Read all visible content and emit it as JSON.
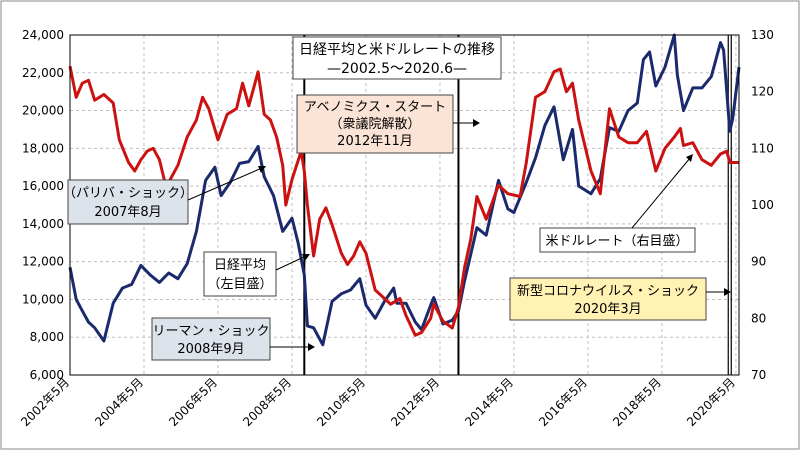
{
  "chart_data": {
    "type": "line",
    "title": "日経平均と米ドルレートの推移",
    "subtitle": "—2002.5～2020.6—",
    "x_range": [
      "2002-05",
      "2020-06"
    ],
    "x_tick_labels": [
      "2002年5月",
      "2004年5月",
      "2006年5月",
      "2008年5月",
      "2010年5月",
      "2012年5月",
      "2014年5月",
      "2016年5月",
      "2018年5月",
      "2020年5月"
    ],
    "y_left": {
      "ylim": [
        6000,
        24000
      ],
      "ticks": [
        "6,000",
        "8,000",
        "10,000",
        "12,000",
        "14,000",
        "16,000",
        "18,000",
        "20,000",
        "22,000",
        "24,000"
      ]
    },
    "y_right": {
      "ylim": [
        70,
        130
      ],
      "ticks": [
        "70",
        "80",
        "90",
        "100",
        "110",
        "120",
        "130"
      ]
    },
    "grid": true,
    "series": [
      {
        "name": "日経平均（左目盛）",
        "color": "#1a2a6c",
        "axis": "left",
        "points": [
          [
            "2002-05",
            11700
          ],
          [
            "2002-07",
            10000
          ],
          [
            "2002-09",
            9400
          ],
          [
            "2002-11",
            8800
          ],
          [
            "2003-01",
            8500
          ],
          [
            "2003-04",
            7800
          ],
          [
            "2003-07",
            9800
          ],
          [
            "2003-10",
            10600
          ],
          [
            "2004-01",
            10800
          ],
          [
            "2004-04",
            11800
          ],
          [
            "2004-07",
            11300
          ],
          [
            "2004-10",
            10900
          ],
          [
            "2005-01",
            11400
          ],
          [
            "2005-04",
            11100
          ],
          [
            "2005-07",
            11900
          ],
          [
            "2005-10",
            13600
          ],
          [
            "2006-01",
            16300
          ],
          [
            "2006-04",
            17000
          ],
          [
            "2006-06",
            15500
          ],
          [
            "2006-09",
            16200
          ],
          [
            "2006-12",
            17200
          ],
          [
            "2007-03",
            17300
          ],
          [
            "2007-06",
            18100
          ],
          [
            "2007-08",
            16500
          ],
          [
            "2007-11",
            15500
          ],
          [
            "2008-02",
            13600
          ],
          [
            "2008-05",
            14300
          ],
          [
            "2008-07",
            13000
          ],
          [
            "2008-09",
            11300
          ],
          [
            "2008-10",
            8600
          ],
          [
            "2008-12",
            8500
          ],
          [
            "2009-03",
            7600
          ],
          [
            "2009-06",
            9900
          ],
          [
            "2009-09",
            10300
          ],
          [
            "2009-12",
            10500
          ],
          [
            "2010-03",
            11100
          ],
          [
            "2010-05",
            9700
          ],
          [
            "2010-08",
            9000
          ],
          [
            "2010-11",
            9900
          ],
          [
            "2011-02",
            10600
          ],
          [
            "2011-03",
            9800
          ],
          [
            "2011-06",
            9800
          ],
          [
            "2011-09",
            8800
          ],
          [
            "2011-11",
            8400
          ],
          [
            "2012-02",
            9700
          ],
          [
            "2012-03",
            10100
          ],
          [
            "2012-06",
            8700
          ],
          [
            "2012-09",
            8900
          ],
          [
            "2012-11",
            9400
          ],
          [
            "2013-01",
            11000
          ],
          [
            "2013-03",
            12400
          ],
          [
            "2013-05",
            13800
          ],
          [
            "2013-08",
            13400
          ],
          [
            "2013-12",
            16300
          ],
          [
            "2014-03",
            14800
          ],
          [
            "2014-05",
            14600
          ],
          [
            "2014-09",
            16200
          ],
          [
            "2014-12",
            17500
          ],
          [
            "2015-03",
            19200
          ],
          [
            "2015-06",
            20200
          ],
          [
            "2015-09",
            17400
          ],
          [
            "2015-12",
            19000
          ],
          [
            "2016-02",
            16000
          ],
          [
            "2016-06",
            15600
          ],
          [
            "2016-09",
            16400
          ],
          [
            "2016-12",
            19100
          ],
          [
            "2017-03",
            18900
          ],
          [
            "2017-06",
            20000
          ],
          [
            "2017-09",
            20400
          ],
          [
            "2017-11",
            22700
          ],
          [
            "2018-01",
            23100
          ],
          [
            "2018-03",
            21300
          ],
          [
            "2018-06",
            22300
          ],
          [
            "2018-09",
            24000
          ],
          [
            "2018-10",
            21900
          ],
          [
            "2018-12",
            20000
          ],
          [
            "2019-03",
            21200
          ],
          [
            "2019-06",
            21200
          ],
          [
            "2019-09",
            21800
          ],
          [
            "2019-12",
            23600
          ],
          [
            "2020-01",
            23200
          ],
          [
            "2020-03",
            18900
          ],
          [
            "2020-04",
            19600
          ],
          [
            "2020-06",
            22300
          ]
        ]
      },
      {
        "name": "米ドルレート（右目盛）",
        "color": "#cc1111",
        "axis": "right",
        "points": [
          [
            "2002-05",
            124.5
          ],
          [
            "2002-07",
            119
          ],
          [
            "2002-09",
            121.5
          ],
          [
            "2002-11",
            122
          ],
          [
            "2003-01",
            118.5
          ],
          [
            "2003-04",
            119.5
          ],
          [
            "2003-07",
            118
          ],
          [
            "2003-09",
            111.5
          ],
          [
            "2003-12",
            107.5
          ],
          [
            "2004-02",
            106
          ],
          [
            "2004-04",
            108
          ],
          [
            "2004-06",
            109.5
          ],
          [
            "2004-08",
            110
          ],
          [
            "2004-10",
            108
          ],
          [
            "2004-12",
            103.5
          ],
          [
            "2005-01",
            104
          ],
          [
            "2005-04",
            107
          ],
          [
            "2005-07",
            112
          ],
          [
            "2005-10",
            115
          ],
          [
            "2005-12",
            119
          ],
          [
            "2006-02",
            117
          ],
          [
            "2006-05",
            111.5
          ],
          [
            "2006-08",
            116
          ],
          [
            "2006-11",
            117
          ],
          [
            "2007-01",
            121.5
          ],
          [
            "2007-03",
            117.5
          ],
          [
            "2007-06",
            123.5
          ],
          [
            "2007-08",
            116
          ],
          [
            "2007-10",
            115
          ],
          [
            "2007-12",
            112
          ],
          [
            "2008-02",
            107
          ],
          [
            "2008-03",
            100
          ],
          [
            "2008-05",
            104.5
          ],
          [
            "2008-08",
            109.5
          ],
          [
            "2008-09",
            106
          ],
          [
            "2008-10",
            100
          ],
          [
            "2008-12",
            91
          ],
          [
            "2009-02",
            97.5
          ],
          [
            "2009-04",
            99.5
          ],
          [
            "2009-06",
            96.5
          ],
          [
            "2009-09",
            91.5
          ],
          [
            "2009-11",
            89.5
          ],
          [
            "2010-01",
            91
          ],
          [
            "2010-03",
            93.5
          ],
          [
            "2010-05",
            91.5
          ],
          [
            "2010-08",
            85
          ],
          [
            "2010-11",
            83.5
          ],
          [
            "2011-01",
            82.5
          ],
          [
            "2011-04",
            83.5
          ],
          [
            "2011-06",
            80.5
          ],
          [
            "2011-09",
            77
          ],
          [
            "2011-11",
            77.5
          ],
          [
            "2012-02",
            80
          ],
          [
            "2012-03",
            82.5
          ],
          [
            "2012-06",
            79.5
          ],
          [
            "2012-09",
            78.3
          ],
          [
            "2012-11",
            82
          ],
          [
            "2013-01",
            89
          ],
          [
            "2013-03",
            94
          ],
          [
            "2013-05",
            101.5
          ],
          [
            "2013-08",
            97.5
          ],
          [
            "2013-12",
            103.5
          ],
          [
            "2014-03",
            102
          ],
          [
            "2014-07",
            101.5
          ],
          [
            "2014-09",
            107.5
          ],
          [
            "2014-12",
            119
          ],
          [
            "2015-03",
            120
          ],
          [
            "2015-06",
            123.5
          ],
          [
            "2015-08",
            124
          ],
          [
            "2015-10",
            120
          ],
          [
            "2015-12",
            121.5
          ],
          [
            "2016-02",
            115
          ],
          [
            "2016-06",
            106
          ],
          [
            "2016-09",
            102
          ],
          [
            "2016-12",
            117
          ],
          [
            "2017-03",
            112
          ],
          [
            "2017-06",
            111
          ],
          [
            "2017-09",
            111
          ],
          [
            "2017-12",
            113
          ],
          [
            "2018-03",
            106
          ],
          [
            "2018-06",
            110
          ],
          [
            "2018-09",
            112
          ],
          [
            "2018-11",
            113.5
          ],
          [
            "2018-12",
            110.5
          ],
          [
            "2019-03",
            111
          ],
          [
            "2019-06",
            108
          ],
          [
            "2019-09",
            107
          ],
          [
            "2019-12",
            109
          ],
          [
            "2020-02",
            109.5
          ],
          [
            "2020-03",
            107.5
          ],
          [
            "2020-06",
            107.5
          ]
        ]
      }
    ],
    "event_lines": [
      {
        "date": "2008-09",
        "style": "solid"
      },
      {
        "date": "2012-11",
        "style": "solid"
      },
      {
        "date": "2020-03",
        "style": "double"
      }
    ],
    "annotations": {
      "paribas": {
        "lines": [
          "（パリバ・ショック）",
          "2007年8月"
        ],
        "fill": "#dde3ea"
      },
      "lehman": {
        "lines": [
          "リーマン・ショック",
          "2008年9月"
        ],
        "fill": "#dde3ea"
      },
      "abenomics": {
        "lines": [
          "アベノミクス・スタート",
          "（衆議院解散）",
          "2012年11月"
        ],
        "fill": "#fbe4d5"
      },
      "covid": {
        "lines": [
          "新型コロナウイルス・ショック",
          "2020年3月"
        ],
        "fill": "#fff2b3"
      },
      "nikkei_label": {
        "lines": [
          "日経平均",
          "（左目盛）"
        ],
        "fill": "#ffffff"
      },
      "usd_label": {
        "lines": [
          "米ドルレート（右目盛）"
        ],
        "fill": "#ffffff"
      },
      "title_box": {
        "fill": "#ffffff"
      }
    }
  }
}
